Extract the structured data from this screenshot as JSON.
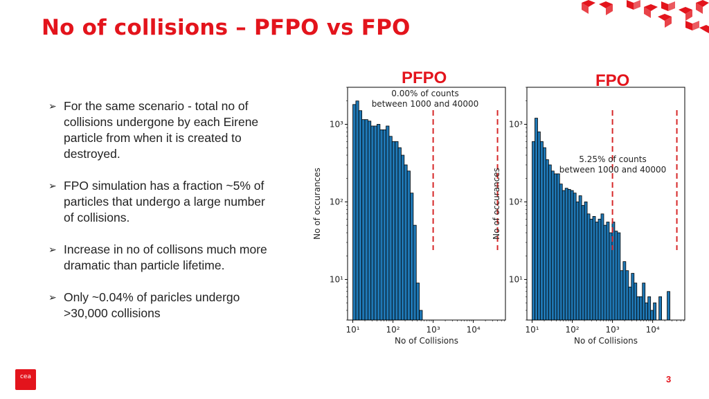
{
  "slide": {
    "title": "No of collisions – PFPO vs FPO",
    "page_number": "3",
    "logo_text": "cea",
    "accent_color": "#e3141c",
    "bullet_symbol": "➢",
    "bullets": [
      "For the same scenario - total no of collisions undergone by each Eirene particle from when it is created to destroyed.",
      "FPO simulation has a fraction ~5% of particles that undergo a large number of collisions.",
      "Increase in no of collisons much more dramatic than particle lifetime.",
      "Only ~0.04% of paricles undergo >30,000 collisions"
    ]
  },
  "chart_data": [
    {
      "type": "bar",
      "panel_label": "PFPO",
      "annotation": "0.00% of counts\nbetween 1000 and 40000",
      "xlabel": "No of Collisions",
      "ylabel": "No of occurances",
      "xscale": "log",
      "yscale": "log",
      "xlim": [
        10,
        50000
      ],
      "ylim": [
        3,
        3000
      ],
      "xticks": [
        10,
        100,
        1000,
        10000
      ],
      "xtick_labels": [
        "10¹",
        "10²",
        "10³",
        "10⁴"
      ],
      "yticks": [
        10,
        100,
        1000
      ],
      "ytick_labels": [
        "10¹",
        "10²",
        "10³"
      ],
      "bar_color": "#1f77b4",
      "vlines": [
        1000,
        40000
      ],
      "vline_color": "#d62728",
      "x": [
        10.0,
        11.9,
        14.1,
        16.8,
        20.0,
        23.8,
        28.3,
        33.6,
        40.0,
        47.6,
        56.6,
        67.3,
        80.0,
        95.1,
        113.1,
        134.5,
        160.0,
        190.3,
        226.3,
        269.1,
        320.0,
        380.5,
        452.5,
        538.2,
        640.0
      ],
      "values": [
        1800,
        2000,
        1500,
        1150,
        1150,
        1100,
        950,
        950,
        1000,
        850,
        850,
        950,
        700,
        600,
        600,
        500,
        400,
        300,
        250,
        130,
        50,
        9,
        4,
        3,
        3
      ]
    },
    {
      "type": "bar",
      "panel_label": "FPO",
      "annotation": "5.25% of counts\nbetween 1000 and 40000",
      "xlabel": "No of Collisions",
      "ylabel": "No of occurances",
      "xscale": "log",
      "yscale": "log",
      "xlim": [
        10,
        50000
      ],
      "ylim": [
        3,
        3000
      ],
      "xticks": [
        10,
        100,
        1000,
        10000
      ],
      "xtick_labels": [
        "10¹",
        "10²",
        "10³",
        "10⁴"
      ],
      "yticks": [
        10,
        100,
        1000
      ],
      "ytick_labels": [
        "10¹",
        "10²",
        "10³"
      ],
      "bar_color": "#1f77b4",
      "vlines": [
        1000,
        40000
      ],
      "vline_color": "#d62728",
      "x": [
        10.0,
        11.7,
        13.7,
        16.0,
        18.8,
        22.0,
        25.7,
        30.1,
        35.3,
        41.3,
        48.4,
        56.6,
        66.3,
        77.7,
        91.0,
        106.5,
        124.8,
        146.1,
        171.1,
        200.4,
        234.7,
        274.9,
        321.9,
        377.0,
        441.6,
        517.2,
        605.7,
        709.4,
        830.8,
        973.1,
        1139.7,
        1334.8,
        1563.3,
        1830.9,
        2144.3,
        2511.4,
        2941.3,
        3444.8,
        4034.5,
        4725.2,
        5534.1,
        6481.4,
        7591.0,
        8890.4,
        10412.4,
        12194.9,
        14282.5,
        16727.5,
        19591.0,
        22944.8,
        26872.6
      ],
      "values": [
        600,
        1200,
        800,
        600,
        500,
        350,
        300,
        250,
        230,
        230,
        170,
        140,
        150,
        145,
        140,
        130,
        100,
        120,
        90,
        100,
        70,
        60,
        65,
        55,
        60,
        70,
        50,
        55,
        40,
        55,
        42,
        40,
        13,
        17,
        13,
        8,
        12,
        9,
        6,
        6,
        9,
        5,
        6,
        4,
        5,
        3,
        6,
        3,
        3,
        7,
        3
      ]
    }
  ]
}
